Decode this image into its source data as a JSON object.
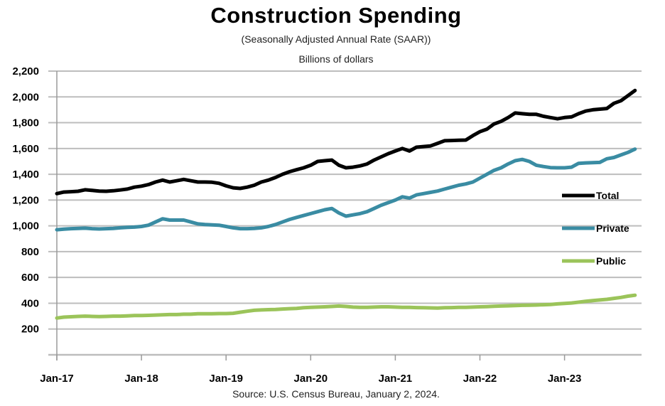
{
  "chart_data": {
    "type": "line",
    "title": "Construction Spending",
    "subtitle": "(Seasonally Adjusted Annual Rate (SAAR))",
    "ylabel": "Billions of dollars",
    "source": "Source: U.S. Census Bureau, January 2, 2024.",
    "x_start": "Jan-17",
    "x_end": "Nov-23",
    "x_frequency": "monthly",
    "x_tick_labels": [
      "Jan-17",
      "Jan-18",
      "Jan-19",
      "Jan-20",
      "Jan-21",
      "Jan-22",
      "Jan-23"
    ],
    "y_tick_labels": [
      "200",
      "400",
      "600",
      "800",
      "1,000",
      "1,200",
      "1,400",
      "1,600",
      "1,800",
      "2,000",
      "2,200"
    ],
    "ylim": [
      0,
      2200
    ],
    "grid": true,
    "legend_placement": "right",
    "series": [
      {
        "name": "Total",
        "color": "#000000",
        "values": [
          1250,
          1262,
          1265,
          1268,
          1280,
          1275,
          1270,
          1268,
          1272,
          1278,
          1285,
          1300,
          1308,
          1320,
          1340,
          1355,
          1340,
          1350,
          1360,
          1350,
          1340,
          1340,
          1338,
          1330,
          1310,
          1295,
          1290,
          1300,
          1315,
          1340,
          1355,
          1375,
          1400,
          1420,
          1435,
          1450,
          1470,
          1500,
          1505,
          1510,
          1470,
          1450,
          1455,
          1465,
          1480,
          1510,
          1535,
          1560,
          1580,
          1600,
          1580,
          1610,
          1615,
          1620,
          1640,
          1660,
          1662,
          1664,
          1665,
          1700,
          1730,
          1750,
          1790,
          1810,
          1840,
          1875,
          1870,
          1865,
          1865,
          1850,
          1840,
          1830,
          1840,
          1845,
          1870,
          1890,
          1900,
          1905,
          1910,
          1950,
          1970,
          2010,
          2050
        ]
      },
      {
        "name": "Private",
        "color": "#3a8ca3",
        "values": [
          970,
          975,
          978,
          980,
          982,
          978,
          976,
          978,
          980,
          985,
          988,
          990,
          995,
          1005,
          1030,
          1055,
          1045,
          1045,
          1045,
          1030,
          1015,
          1010,
          1008,
          1005,
          995,
          985,
          978,
          978,
          980,
          985,
          995,
          1010,
          1030,
          1050,
          1065,
          1080,
          1095,
          1110,
          1125,
          1135,
          1100,
          1075,
          1085,
          1095,
          1110,
          1135,
          1160,
          1180,
          1200,
          1225,
          1215,
          1240,
          1250,
          1260,
          1270,
          1285,
          1300,
          1315,
          1325,
          1340,
          1370,
          1400,
          1430,
          1450,
          1480,
          1505,
          1515,
          1500,
          1470,
          1460,
          1452,
          1450,
          1450,
          1455,
          1485,
          1488,
          1490,
          1492,
          1520,
          1530,
          1550,
          1570,
          1595
        ]
      },
      {
        "name": "Public",
        "color": "#9bc45a",
        "values": [
          285,
          292,
          295,
          298,
          300,
          298,
          296,
          298,
          300,
          300,
          302,
          305,
          305,
          306,
          308,
          310,
          312,
          312,
          315,
          315,
          318,
          318,
          318,
          320,
          320,
          322,
          330,
          338,
          345,
          348,
          350,
          352,
          355,
          358,
          360,
          365,
          368,
          370,
          372,
          375,
          378,
          375,
          370,
          368,
          368,
          370,
          372,
          372,
          370,
          368,
          368,
          366,
          365,
          364,
          362,
          365,
          366,
          368,
          368,
          370,
          372,
          374,
          376,
          378,
          380,
          382,
          384,
          385,
          386,
          388,
          390,
          395,
          398,
          402,
          408,
          415,
          420,
          425,
          430,
          438,
          445,
          455,
          462
        ]
      }
    ]
  }
}
